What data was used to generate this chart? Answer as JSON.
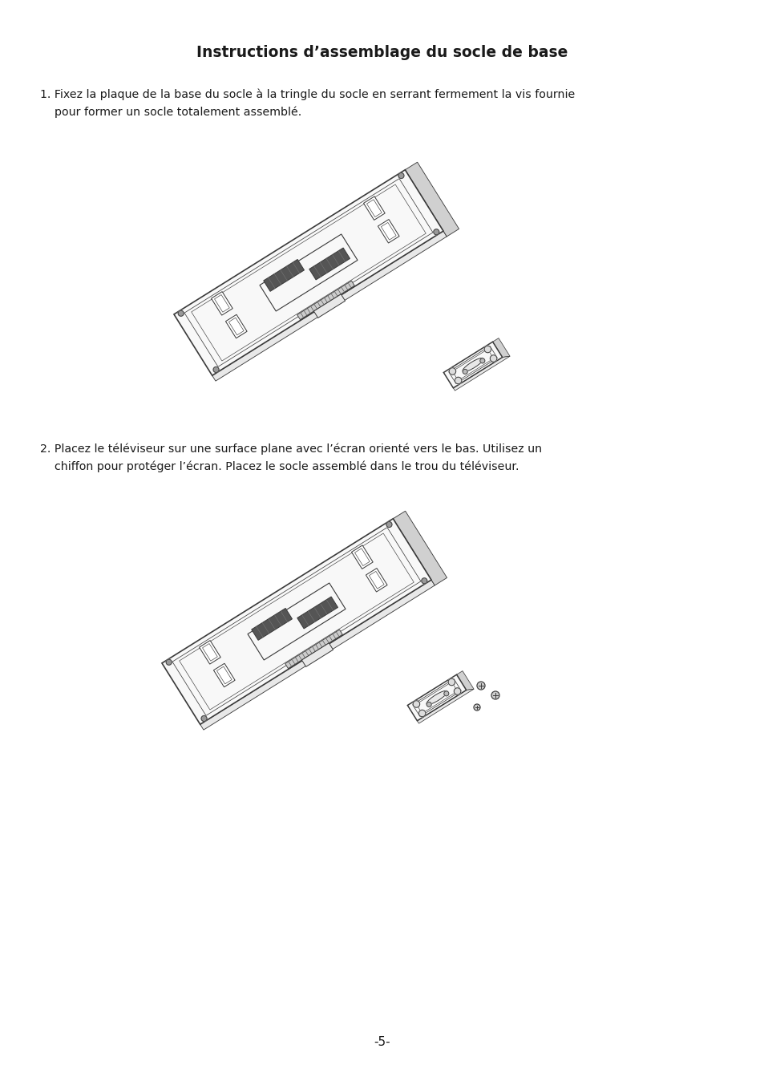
{
  "title": "Instructions d’assemblage du socle de base",
  "background_color": "#ffffff",
  "text_color": "#1a1a1a",
  "title_fontsize": 13.5,
  "body_fontsize": 10.2,
  "step1_line1": "1. Fixez la plaque de la base du socle à la tringle du socle en serrant fermement la vis fournie",
  "step1_line2": "    pour former un socle totalement assemblé.",
  "step2_line1": "2. Placez le téléviseur sur une surface plane avec l’écran orienté vers le bas. Utilisez un",
  "step2_line2": "    chiffon pour protéger l’écran. Placez le socle assemblé dans le trou du téléviseur.",
  "page_number": "-5-",
  "line_color": "#3a3a3a",
  "light_fill": "#f8f8f8",
  "mid_fill": "#e8e8e8",
  "dark_fill": "#555555",
  "darker_fill": "#888888"
}
